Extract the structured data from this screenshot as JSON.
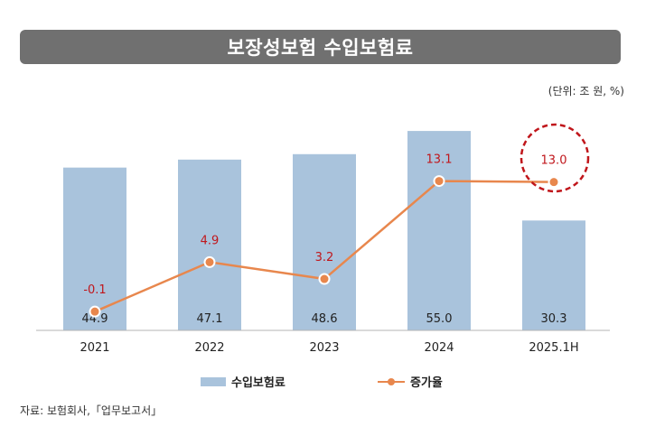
{
  "title": "보장성보험 수입보험료",
  "unit": "(단위: 조 원, %)",
  "source": "자료: 보험회사,「업무보고서」",
  "colors": {
    "bar": "#a9c3dc",
    "line": "#e8874d",
    "growth_label": "#c0161b",
    "highlight": "#c0161b",
    "title_bg": "#707070"
  },
  "chart_data": {
    "type": "bar+line",
    "title": "보장성보험 수입보험료",
    "categories": [
      "2021",
      "2022",
      "2023",
      "2024",
      "2025.1H"
    ],
    "series": [
      {
        "name": "수입보험료",
        "type": "bar",
        "axis": "left",
        "values": [
          44.9,
          47.1,
          48.6,
          55.0,
          30.3
        ],
        "labels": [
          "44.9",
          "47.1",
          "48.6",
          "55.0",
          "30.3"
        ]
      },
      {
        "name": "증가율",
        "type": "line",
        "axis": "right",
        "values": [
          -0.1,
          4.9,
          3.2,
          13.1,
          13.0
        ],
        "labels": [
          "-0.1",
          "4.9",
          "3.2",
          "13.1",
          "13.0"
        ]
      }
    ],
    "y_left_range": [
      0,
      60
    ],
    "y_right_range": [
      -2,
      20
    ],
    "highlighted_point": "2025.1H",
    "legend": [
      "수입보험료",
      "증가율"
    ],
    "legend_position": "bottom",
    "grid": false
  }
}
